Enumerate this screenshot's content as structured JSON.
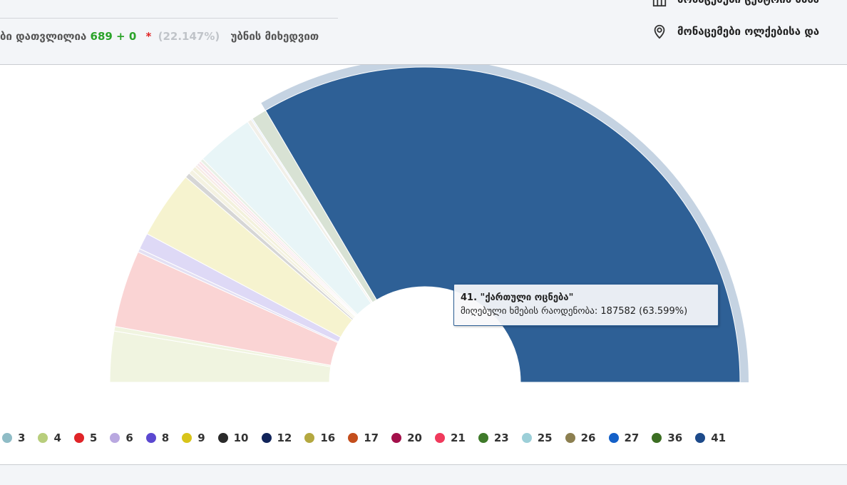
{
  "header": {
    "counted_prefix": "ბი დათვლილია",
    "counted_value": "689 + 0",
    "counted_star": "*",
    "counted_percent": "(22.147%)",
    "counted_suffix": "უბნის მიხედვით",
    "link_center": "მონაცემები ცენტრის მასშ",
    "link_district": "მონაცემები ოლქებისა და"
  },
  "tooltip": {
    "title": "41. \"ქართული ოცნება\"",
    "label": "მიღებული ხმების რაოდენობა:",
    "value": "187582 (63.599%)"
  },
  "chart_data": {
    "type": "pie",
    "shape": "semi-donut",
    "highlighted": "41",
    "slices": [
      {
        "name": "3",
        "percent": 4.95,
        "color": "#f0f4e0"
      },
      {
        "name": "4",
        "percent": 0.45,
        "color": "#f0f4e0"
      },
      {
        "name": "5",
        "percent": 7.5,
        "color": "#fad4d4"
      },
      {
        "name": "6",
        "percent": 0.35,
        "color": "#e3e0f3"
      },
      {
        "name": "8",
        "percent": 1.6,
        "color": "#ded9f6"
      },
      {
        "name": "9",
        "percent": 6.6,
        "color": "#f6f3cf"
      },
      {
        "name": "10",
        "percent": 0.5,
        "color": "#d6d6d6"
      },
      {
        "name": "12",
        "percent": 0.45,
        "color": "#f4f2e2"
      },
      {
        "name": "16",
        "percent": 0.4,
        "color": "#f3f1dd"
      },
      {
        "name": "17",
        "percent": 0.25,
        "color": "#f8ece6"
      },
      {
        "name": "20",
        "percent": 0.25,
        "color": "#f4e6ec"
      },
      {
        "name": "21",
        "percent": 0.25,
        "color": "#fbe6ea"
      },
      {
        "name": "23",
        "percent": 0.3,
        "color": "#e9f0e6"
      },
      {
        "name": "25",
        "percent": 5.6,
        "color": "#e8f5f7"
      },
      {
        "name": "26",
        "percent": 0.4,
        "color": "#f1efe8"
      },
      {
        "name": "27",
        "percent": 0.15,
        "color": "#e6effb"
      },
      {
        "name": "36",
        "percent": 1.49,
        "color": "#d8e2d4"
      },
      {
        "name": "41",
        "percent": 63.599,
        "color": "#2e6096"
      }
    ],
    "legend": [
      {
        "name": "3",
        "color": "#8fbcc6"
      },
      {
        "name": "4",
        "color": "#b8ce7c"
      },
      {
        "name": "5",
        "color": "#e02428"
      },
      {
        "name": "6",
        "color": "#b9a8e0"
      },
      {
        "name": "8",
        "color": "#5b48d0"
      },
      {
        "name": "9",
        "color": "#d8c41a"
      },
      {
        "name": "10",
        "color": "#2a2a2a"
      },
      {
        "name": "12",
        "color": "#11245a"
      },
      {
        "name": "16",
        "color": "#b4a840"
      },
      {
        "name": "17",
        "color": "#c44e1c"
      },
      {
        "name": "20",
        "color": "#a3104a"
      },
      {
        "name": "21",
        "color": "#f03a5c"
      },
      {
        "name": "23",
        "color": "#3f7a2a"
      },
      {
        "name": "25",
        "color": "#9ccfd8"
      },
      {
        "name": "26",
        "color": "#8c7f50"
      },
      {
        "name": "27",
        "color": "#1460c8"
      },
      {
        "name": "36",
        "color": "#3c6e22"
      },
      {
        "name": "41",
        "color": "#1d4a8a"
      }
    ]
  }
}
